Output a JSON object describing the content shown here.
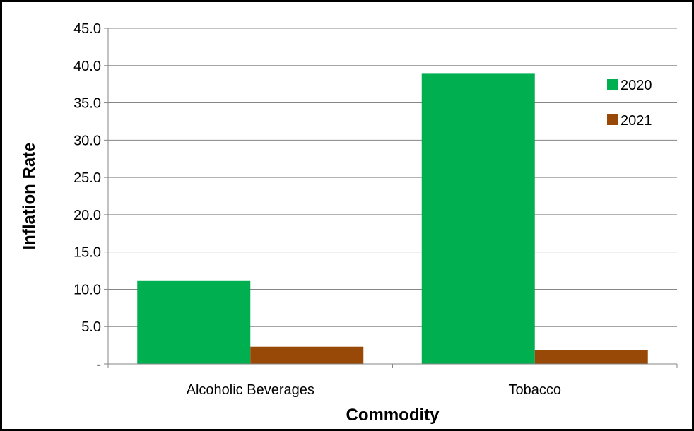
{
  "chart_data": {
    "type": "bar",
    "title": "",
    "xlabel": "Commodity",
    "ylabel": "Inflation Rate",
    "categories": [
      "Alcoholic Beverages",
      "Tobacco"
    ],
    "series": [
      {
        "name": "2020",
        "values": [
          11.2,
          38.9
        ],
        "color": "#00b050"
      },
      {
        "name": "2021",
        "values": [
          2.3,
          1.8
        ],
        "color": "#984807"
      }
    ],
    "ylim": [
      0,
      45
    ],
    "yticks": [
      0,
      5,
      10,
      15,
      20,
      25,
      30,
      35,
      40,
      45
    ],
    "ytick_labels": [
      "-",
      "5.0",
      "10.0",
      "15.0",
      "20.0",
      "25.0",
      "30.0",
      "35.0",
      "40.0",
      "45.0"
    ],
    "grid": true,
    "legend_position": "top-right"
  }
}
